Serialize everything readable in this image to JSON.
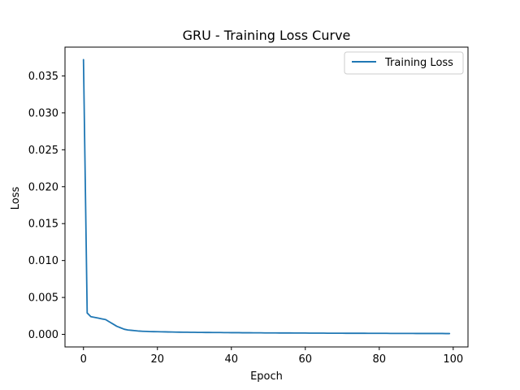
{
  "chart_data": {
    "type": "line",
    "title": "GRU - Training Loss Curve",
    "xlabel": "Epoch",
    "ylabel": "Loss",
    "xlim": [
      -5,
      104
    ],
    "ylim": [
      -0.0017,
      0.0389
    ],
    "xticks": [
      0,
      20,
      40,
      60,
      80,
      100
    ],
    "xtick_labels": [
      "0",
      "20",
      "40",
      "60",
      "80",
      "100"
    ],
    "yticks": [
      0.0,
      0.005,
      0.01,
      0.015,
      0.02,
      0.025,
      0.03,
      0.035
    ],
    "ytick_labels": [
      "0.000",
      "0.005",
      "0.010",
      "0.015",
      "0.020",
      "0.025",
      "0.030",
      "0.035"
    ],
    "grid": false,
    "legend_position": "top-right",
    "series": [
      {
        "name": "Training Loss",
        "color": "#1f77b4",
        "x": [
          0,
          1,
          2,
          3,
          4,
          5,
          6,
          7,
          8,
          9,
          10,
          11,
          12,
          13,
          14,
          15,
          16,
          17,
          18,
          19,
          20,
          21,
          22,
          23,
          24,
          25,
          26,
          27,
          28,
          29,
          30,
          31,
          32,
          33,
          34,
          35,
          36,
          37,
          38,
          39,
          40,
          41,
          42,
          43,
          44,
          45,
          46,
          47,
          48,
          49,
          50,
          51,
          52,
          53,
          54,
          55,
          56,
          57,
          58,
          59,
          60,
          61,
          62,
          63,
          64,
          65,
          66,
          67,
          68,
          69,
          70,
          71,
          72,
          73,
          74,
          75,
          76,
          77,
          78,
          79,
          80,
          81,
          82,
          83,
          84,
          85,
          86,
          87,
          88,
          89,
          90,
          91,
          92,
          93,
          94,
          95,
          96,
          97,
          98,
          99
        ],
        "values": [
          0.0372,
          0.0029,
          0.0024,
          0.0023,
          0.0022,
          0.0021,
          0.002,
          0.0017,
          0.0014,
          0.0011,
          0.0009,
          0.0007,
          0.0006,
          0.00055,
          0.0005,
          0.00045,
          0.00042,
          0.0004,
          0.00038,
          0.00037,
          0.00036,
          0.00035,
          0.00034,
          0.00033,
          0.00032,
          0.00031,
          0.0003,
          0.00029,
          0.00029,
          0.00028,
          0.00028,
          0.00027,
          0.00027,
          0.00026,
          0.00026,
          0.00025,
          0.00025,
          0.00025,
          0.00024,
          0.00024,
          0.00023,
          0.00023,
          0.00023,
          0.00022,
          0.00022,
          0.00022,
          0.00021,
          0.00021,
          0.00021,
          0.0002,
          0.0002,
          0.0002,
          0.0002,
          0.00019,
          0.00019,
          0.00019,
          0.00019,
          0.00018,
          0.00018,
          0.00018,
          0.00018,
          0.00017,
          0.00017,
          0.00017,
          0.00017,
          0.00017,
          0.00016,
          0.00016,
          0.00016,
          0.00016,
          0.00016,
          0.00015,
          0.00015,
          0.00015,
          0.00015,
          0.00015,
          0.00015,
          0.00014,
          0.00014,
          0.00014,
          0.00014,
          0.00014,
          0.00014,
          0.00013,
          0.00013,
          0.00013,
          0.00013,
          0.00013,
          0.00013,
          0.00013,
          0.00012,
          0.00012,
          0.00012,
          0.00012,
          0.00012,
          0.00012,
          0.00012,
          0.00012,
          0.00011,
          0.00011
        ]
      }
    ]
  }
}
